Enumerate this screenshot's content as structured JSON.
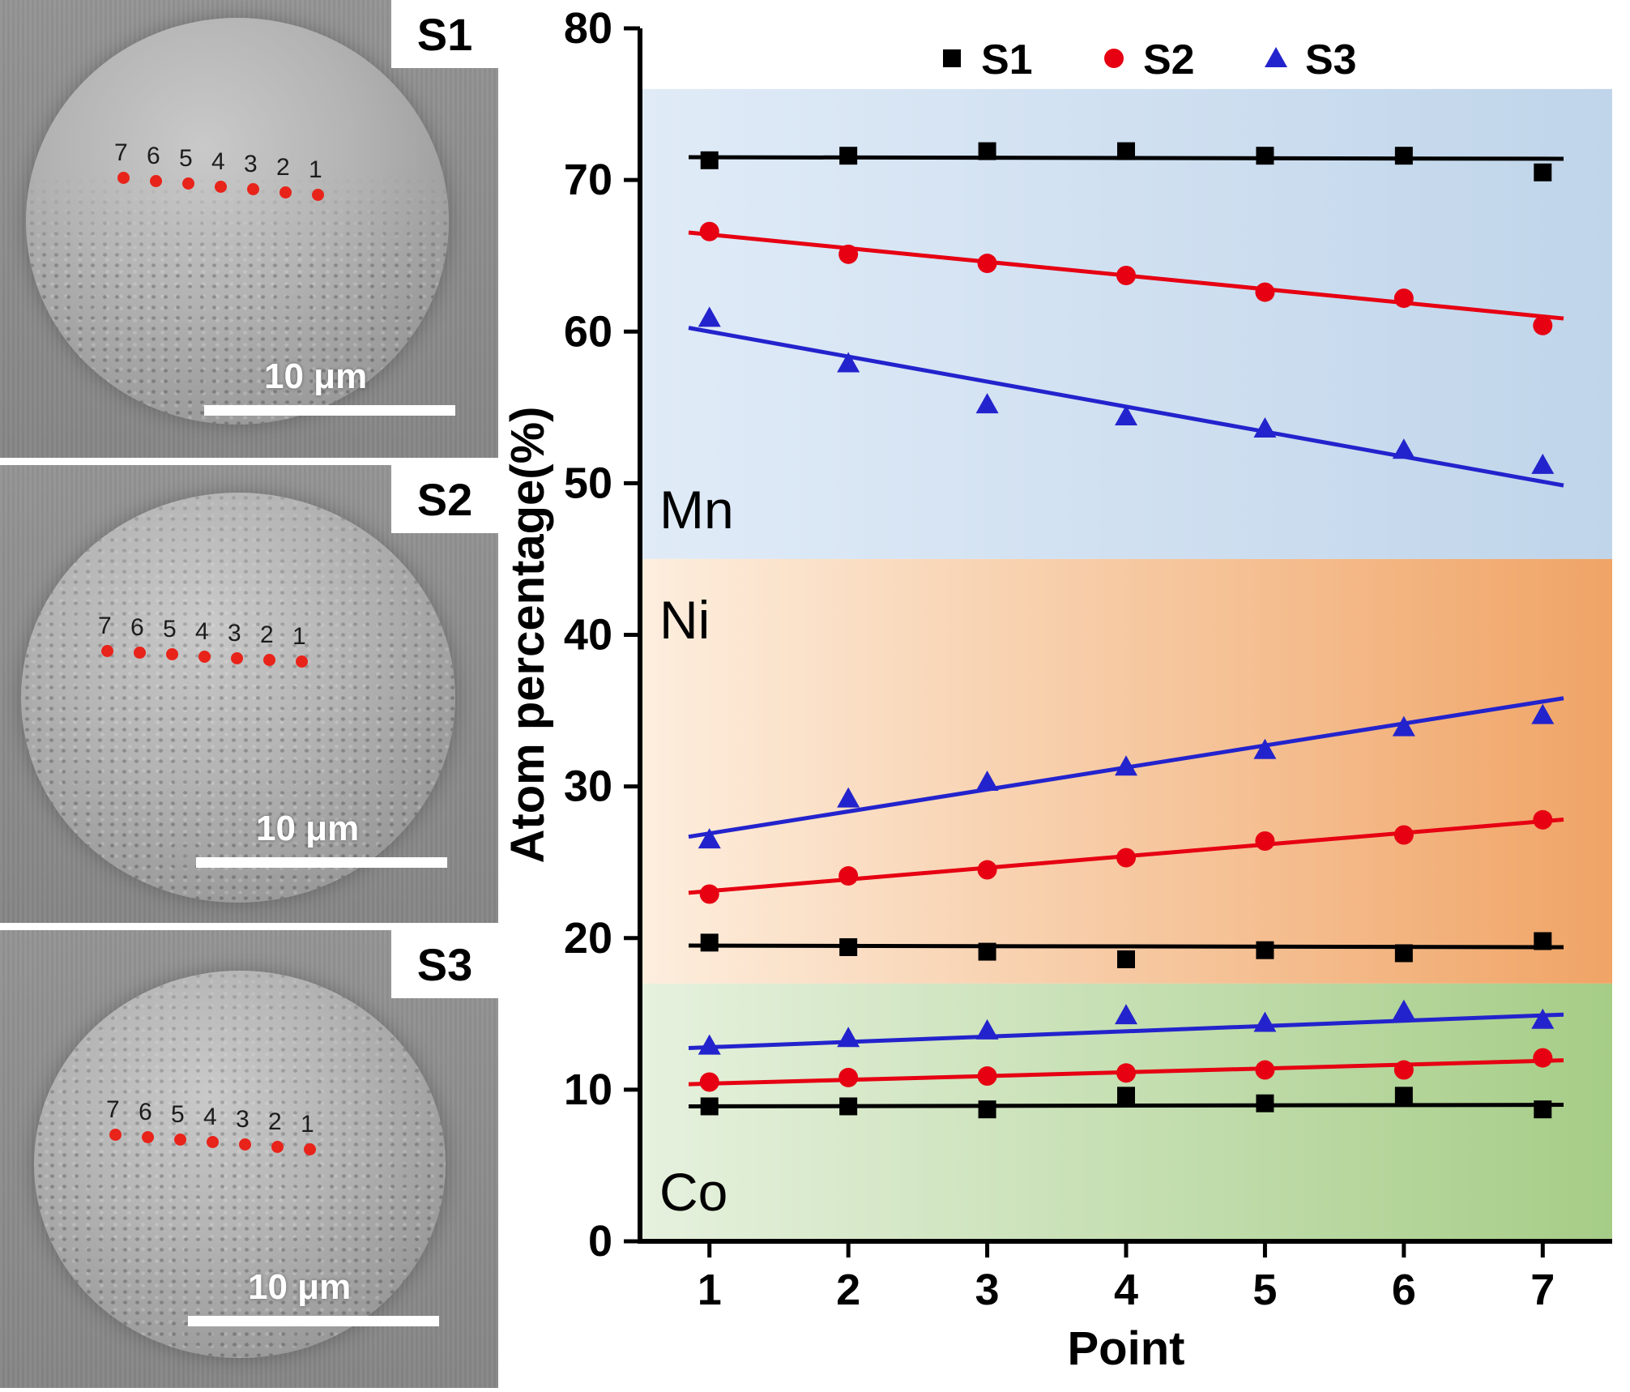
{
  "figure": {
    "panels": [
      {
        "label": "S1",
        "scale_label": "10 μm",
        "points": [
          "7",
          "6",
          "5",
          "4",
          "3",
          "2",
          "1"
        ]
      },
      {
        "label": "S2",
        "scale_label": "10 μm",
        "points": [
          "7",
          "6",
          "5",
          "4",
          "3",
          "2",
          "1"
        ]
      },
      {
        "label": "S3",
        "scale_label": "10 μm",
        "points": [
          "7",
          "6",
          "5",
          "4",
          "3",
          "2",
          "1"
        ]
      }
    ]
  },
  "chart_data": {
    "type": "scatter",
    "xlabel": "Point",
    "ylabel": "Atom percentage(%)",
    "x": [
      1,
      2,
      3,
      4,
      5,
      6,
      7
    ],
    "xlim": [
      0.5,
      7.5
    ],
    "ylim": [
      0,
      80
    ],
    "yticks": [
      0,
      10,
      20,
      30,
      40,
      50,
      60,
      70,
      80
    ],
    "grid": false,
    "legend": {
      "position": "top-inside",
      "entries": [
        {
          "label": "S1",
          "marker": "square",
          "color": "#000000"
        },
        {
          "label": "S2",
          "marker": "circle",
          "color": "#e60012"
        },
        {
          "label": "S3",
          "marker": "triangle",
          "color": "#2323cd"
        }
      ]
    },
    "regions": [
      {
        "label": "Mn",
        "from": 45,
        "to": 76,
        "label_pos": "bottom",
        "color_start": "#e0ebf7",
        "color_end": "#c0d5ea"
      },
      {
        "label": "Ni",
        "from": 17,
        "to": 45,
        "label_pos": "top",
        "color_start": "#fdeede",
        "color_end": "#f0a466"
      },
      {
        "label": "Co",
        "from": 0,
        "to": 17,
        "label_pos": "bottom",
        "color_start": "#e6f1de",
        "color_end": "#a6cd87"
      }
    ],
    "series": [
      {
        "name": "S1",
        "element": "Mn",
        "marker": "square",
        "color": "#000000",
        "values": [
          71.3,
          71.6,
          71.9,
          71.9,
          71.6,
          71.6,
          70.5
        ],
        "fit": [
          71.5,
          71.4
        ]
      },
      {
        "name": "S2",
        "element": "Mn",
        "marker": "circle",
        "color": "#e60012",
        "values": [
          66.6,
          65.1,
          64.5,
          63.7,
          62.6,
          62.2,
          60.4
        ],
        "fit": [
          66.4,
          61.0
        ]
      },
      {
        "name": "S3",
        "element": "Mn",
        "marker": "triangle",
        "color": "#2323cd",
        "values": [
          60.9,
          57.9,
          55.2,
          54.4,
          53.6,
          52.2,
          51.2
        ],
        "fit": [
          60.0,
          50.1
        ]
      },
      {
        "name": "S3",
        "element": "Ni",
        "marker": "triangle",
        "color": "#2323cd",
        "values": [
          26.5,
          29.2,
          30.3,
          31.3,
          32.4,
          33.9,
          34.7
        ],
        "fit": [
          26.9,
          35.6
        ]
      },
      {
        "name": "S2",
        "element": "Ni",
        "marker": "circle",
        "color": "#e60012",
        "values": [
          22.9,
          24.1,
          24.5,
          25.3,
          26.4,
          26.8,
          27.8
        ],
        "fit": [
          23.1,
          27.7
        ]
      },
      {
        "name": "S1",
        "element": "Ni",
        "marker": "square",
        "color": "#000000",
        "values": [
          19.7,
          19.4,
          19.1,
          18.6,
          19.2,
          19.0,
          19.8
        ],
        "fit": [
          19.5,
          19.4
        ]
      },
      {
        "name": "S3",
        "element": "Co",
        "marker": "triangle",
        "color": "#2323cd",
        "values": [
          12.9,
          13.4,
          13.9,
          14.9,
          14.4,
          15.2,
          14.6
        ],
        "fit": [
          12.8,
          14.9
        ]
      },
      {
        "name": "S2",
        "element": "Co",
        "marker": "circle",
        "color": "#e60012",
        "values": [
          10.5,
          10.8,
          10.9,
          11.1,
          11.3,
          11.3,
          12.1
        ],
        "fit": [
          10.4,
          11.9
        ]
      },
      {
        "name": "S1",
        "element": "Co",
        "marker": "square",
        "color": "#000000",
        "values": [
          8.9,
          8.9,
          8.7,
          9.6,
          9.1,
          9.6,
          8.7
        ],
        "fit": [
          8.9,
          9.0
        ]
      }
    ]
  }
}
